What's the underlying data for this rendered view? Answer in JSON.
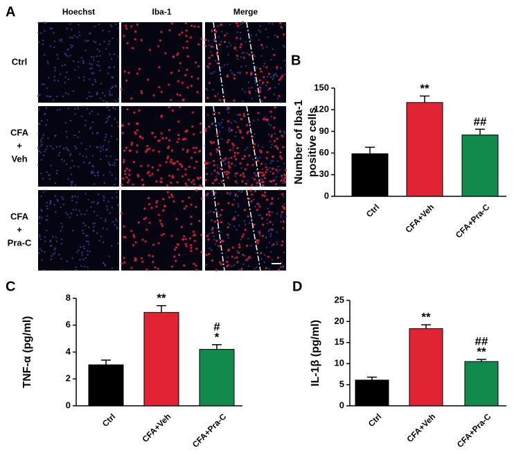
{
  "micrograph": {
    "label": "A",
    "columns": [
      "Hoechst",
      "Iba-1",
      "Merge"
    ],
    "rows": [
      [
        "Ctrl"
      ],
      [
        "CFA",
        "+",
        "Veh"
      ],
      [
        "CFA",
        "+",
        "Pra-C"
      ]
    ]
  },
  "chart_data": [
    {
      "type": "bar",
      "label": "B",
      "ylabel": [
        "Number of Iba-1",
        "positive cells"
      ],
      "categories": [
        "Ctrl",
        "CFA+Veh",
        "CFA+Pra-C"
      ],
      "values": [
        59,
        130,
        85
      ],
      "errors": [
        9,
        9,
        8
      ],
      "colors": [
        "#000000",
        "#e02434",
        "#128a4c"
      ],
      "significance": [
        [],
        [
          "**"
        ],
        [
          "##"
        ]
      ],
      "ylim": [
        0,
        150
      ],
      "yticks": [
        0,
        30,
        60,
        90,
        120,
        150
      ]
    },
    {
      "type": "bar",
      "label": "C",
      "ylabel": [
        "TNF-α (pg/ml)"
      ],
      "categories": [
        "Ctrl",
        "CFA+Veh",
        "CFA+Pra-C"
      ],
      "values": [
        3.05,
        6.95,
        4.2
      ],
      "errors": [
        0.35,
        0.5,
        0.35
      ],
      "colors": [
        "#000000",
        "#e02434",
        "#128a4c"
      ],
      "significance": [
        [],
        [
          "**"
        ],
        [
          "#",
          "*"
        ]
      ],
      "ylim": [
        0,
        8
      ],
      "yticks": [
        0,
        2,
        4,
        6,
        8
      ]
    },
    {
      "type": "bar",
      "label": "D",
      "ylabel": [
        "IL-1β (pg/ml)"
      ],
      "categories": [
        "Ctrl",
        "CFA+Veh",
        "CFA+Pra-C"
      ],
      "values": [
        6.1,
        18.3,
        10.5
      ],
      "errors": [
        0.7,
        0.9,
        0.5
      ],
      "colors": [
        "#000000",
        "#e02434",
        "#128a4c"
      ],
      "significance": [
        [],
        [
          "**"
        ],
        [
          "##",
          "**"
        ]
      ],
      "ylim": [
        0,
        25
      ],
      "yticks": [
        0,
        5,
        10,
        15,
        20,
        25
      ]
    }
  ]
}
